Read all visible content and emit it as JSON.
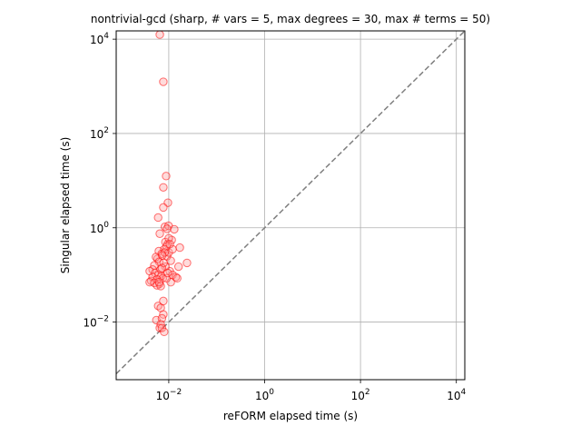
{
  "chart_data": {
    "type": "scatter",
    "title": "nontrivial-gcd (sharp, # vars = 5, max degrees = 30, max # terms = 50)",
    "xlabel": "reFORM elapsed time (s)",
    "ylabel": "Singular elapsed time (s)",
    "xscale": "log",
    "yscale": "log",
    "xlim": [
      0.0008,
      15000
    ],
    "ylim": [
      0.0006,
      15000
    ],
    "grid": true,
    "x_ticks": [
      {
        "value": 0.01,
        "base": "10",
        "exp": "−2"
      },
      {
        "value": 1,
        "base": "10",
        "exp": "0"
      },
      {
        "value": 100,
        "base": "10",
        "exp": "2"
      },
      {
        "value": 10000,
        "base": "10",
        "exp": "4"
      }
    ],
    "y_ticks": [
      {
        "value": 0.01,
        "base": "10",
        "exp": "−2"
      },
      {
        "value": 1,
        "base": "10",
        "exp": "0"
      },
      {
        "value": 100,
        "base": "10",
        "exp": "2"
      },
      {
        "value": 10000,
        "base": "10",
        "exp": "4"
      }
    ],
    "reference_line": {
      "style": "dashed",
      "color": "#7f7f7f",
      "relation": "y = x"
    },
    "marker": {
      "shape": "circle",
      "edge_color": "#ff0000",
      "face_color": "#ff9999",
      "alpha": 0.35
    },
    "points": [
      [
        0.0065,
        12500
      ],
      [
        0.0077,
        1250
      ],
      [
        0.0088,
        12.5
      ],
      [
        0.0077,
        7.2
      ],
      [
        0.0096,
        3.4
      ],
      [
        0.0077,
        2.7
      ],
      [
        0.006,
        1.65
      ],
      [
        0.0083,
        1.05
      ],
      [
        0.0099,
        1.1
      ],
      [
        0.013,
        0.93
      ],
      [
        0.0092,
        0.95
      ],
      [
        0.0065,
        0.75
      ],
      [
        0.0115,
        0.55
      ],
      [
        0.0085,
        0.5
      ],
      [
        0.0095,
        0.45
      ],
      [
        0.017,
        0.38
      ],
      [
        0.024,
        0.18
      ],
      [
        0.016,
        0.15
      ],
      [
        0.008,
        0.35
      ],
      [
        0.0062,
        0.32
      ],
      [
        0.0071,
        0.28
      ],
      [
        0.0058,
        0.22
      ],
      [
        0.0054,
        0.24
      ],
      [
        0.0063,
        0.19
      ],
      [
        0.005,
        0.16
      ],
      [
        0.0046,
        0.13
      ],
      [
        0.004,
        0.12
      ],
      [
        0.0052,
        0.11
      ],
      [
        0.0061,
        0.1
      ],
      [
        0.007,
        0.095
      ],
      [
        0.0046,
        0.09
      ],
      [
        0.0075,
        0.085
      ],
      [
        0.0057,
        0.08
      ],
      [
        0.0043,
        0.075
      ],
      [
        0.004,
        0.07
      ],
      [
        0.005,
        0.068
      ],
      [
        0.0064,
        0.065
      ],
      [
        0.0057,
        0.06
      ],
      [
        0.0068,
        0.058
      ],
      [
        0.011,
        0.07
      ],
      [
        0.009,
        0.085
      ],
      [
        0.0105,
        0.12
      ],
      [
        0.012,
        0.1
      ],
      [
        0.014,
        0.09
      ],
      [
        0.015,
        0.085
      ],
      [
        0.0092,
        0.25
      ],
      [
        0.01,
        0.3
      ],
      [
        0.011,
        0.2
      ],
      [
        0.0085,
        0.15
      ],
      [
        0.0078,
        0.18
      ],
      [
        0.0068,
        0.13
      ],
      [
        0.0095,
        0.11
      ],
      [
        0.0072,
        0.14
      ],
      [
        0.0063,
        0.07
      ],
      [
        0.006,
        0.022
      ],
      [
        0.0068,
        0.02
      ],
      [
        0.0077,
        0.028
      ],
      [
        0.0055,
        0.011
      ],
      [
        0.0077,
        0.0145
      ],
      [
        0.0072,
        0.012
      ],
      [
        0.0068,
        0.009
      ],
      [
        0.0065,
        0.0075
      ],
      [
        0.0072,
        0.0075
      ],
      [
        0.008,
        0.0062
      ],
      [
        0.009,
        0.4
      ],
      [
        0.01,
        0.6
      ],
      [
        0.012,
        0.35
      ],
      [
        0.0105,
        0.45
      ],
      [
        0.0082,
        0.3
      ],
      [
        0.0073,
        0.26
      ]
    ]
  }
}
